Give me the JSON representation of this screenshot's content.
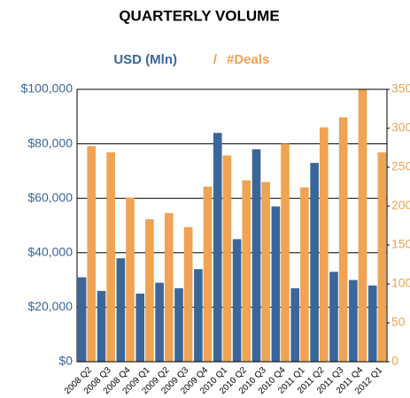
{
  "chart_data": {
    "type": "bar",
    "title": "QUARTERLY VOLUME",
    "legend_separator": "/",
    "categories": [
      "2008 Q2",
      "2008 Q3",
      "2008 Q4",
      "2009 Q1",
      "2009 Q2",
      "2009 Q3",
      "2009 Q4",
      "2010 Q1",
      "2010 Q2",
      "2010 Q3",
      "2010 Q4",
      "2011 Q1",
      "2011 Q2",
      "2011 Q3",
      "2011 Q4",
      "2012 Q1"
    ],
    "series": [
      {
        "name": "USD (Mln)",
        "color": "#3b6699",
        "values": [
          31000,
          26000,
          38000,
          25000,
          29000,
          27000,
          34000,
          84000,
          45000,
          78000,
          57000,
          27000,
          73000,
          33000,
          30000,
          28000
        ]
      },
      {
        "name": "#Deals",
        "color": "#f0a352",
        "axis": "y2",
        "values": [
          277,
          269,
          211,
          183,
          191,
          173,
          225,
          265,
          233,
          231,
          280,
          224,
          301,
          314,
          350,
          269
        ]
      }
    ],
    "ylim": [
      0,
      100000
    ],
    "yticks": [
      {
        "value": 0,
        "label": "$0"
      },
      {
        "value": 20000,
        "label": "$20,000"
      },
      {
        "value": 40000,
        "label": "$40,000"
      },
      {
        "value": 60000,
        "label": "$60,000"
      },
      {
        "value": 80000,
        "label": "$80,000"
      },
      {
        "value": 100000,
        "label": "$100,000"
      }
    ],
    "y2lim": [
      0,
      350
    ],
    "y2ticks": [
      0,
      50,
      100,
      150,
      200,
      250,
      300,
      350
    ],
    "grid": true
  }
}
